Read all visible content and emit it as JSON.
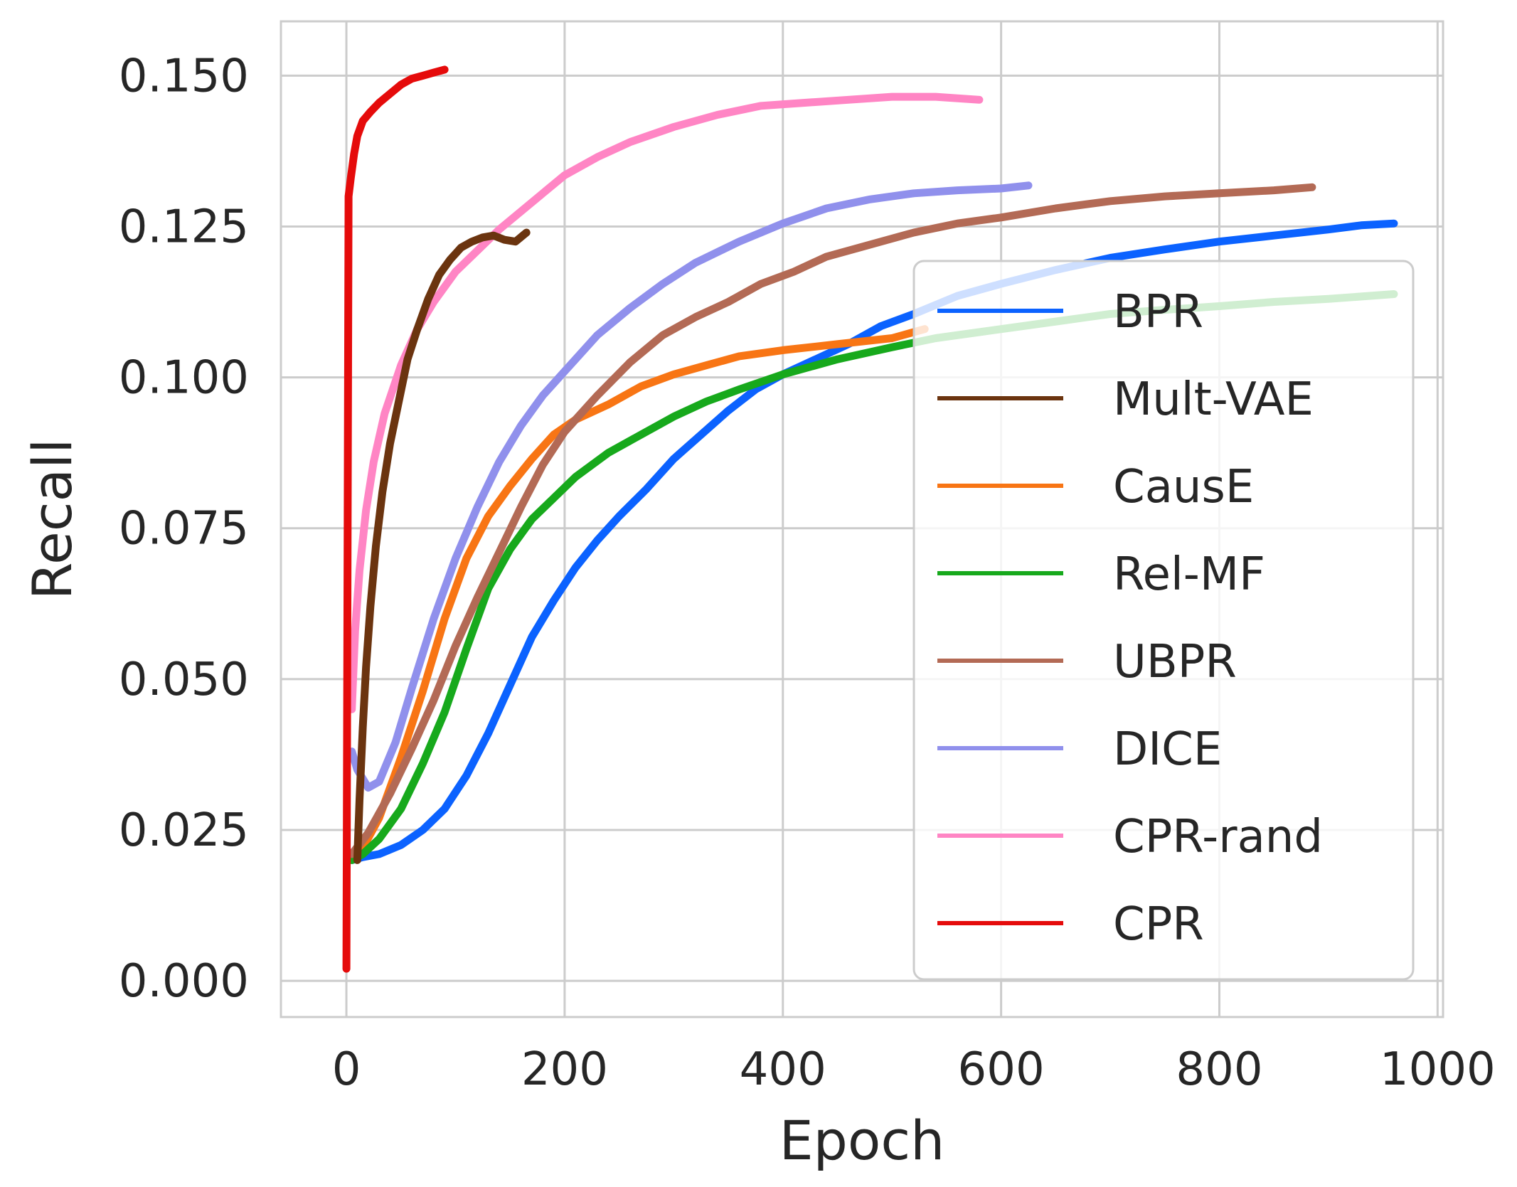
{
  "chart_data": {
    "type": "line",
    "xlabel": "Epoch",
    "ylabel": "Recall",
    "xlim": [
      -60,
      1005
    ],
    "ylim": [
      -0.006,
      0.159
    ],
    "xticks": [
      0,
      200,
      400,
      600,
      800,
      1000
    ],
    "xtick_labels": [
      "0",
      "200",
      "400",
      "600",
      "800",
      "1000"
    ],
    "yticks": [
      0.0,
      0.025,
      0.05,
      0.075,
      0.1,
      0.125,
      0.15
    ],
    "ytick_labels": [
      "0.000",
      "0.025",
      "0.050",
      "0.075",
      "0.100",
      "0.125",
      "0.150"
    ],
    "grid": true,
    "legend_position": "lower-right",
    "series": [
      {
        "name": "BPR",
        "color": "#0b62ff",
        "x": [
          5,
          15,
          30,
          50,
          70,
          90,
          110,
          130,
          150,
          170,
          190,
          210,
          230,
          250,
          275,
          300,
          325,
          350,
          375,
          400,
          430,
          460,
          490,
          520,
          560,
          600,
          650,
          700,
          750,
          800,
          850,
          900,
          930,
          960
        ],
        "y": [
          0.02,
          0.0205,
          0.021,
          0.0225,
          0.025,
          0.0285,
          0.034,
          0.041,
          0.049,
          0.057,
          0.063,
          0.0685,
          0.073,
          0.077,
          0.0815,
          0.0865,
          0.0905,
          0.0945,
          0.098,
          0.1005,
          0.103,
          0.1055,
          0.1085,
          0.1105,
          0.1135,
          0.1155,
          0.1178,
          0.1198,
          0.1212,
          0.1225,
          0.1235,
          0.1245,
          0.1252,
          0.1255
        ]
      },
      {
        "name": "CausE",
        "color": "#f87514",
        "x": [
          5,
          15,
          30,
          50,
          70,
          90,
          110,
          130,
          150,
          170,
          190,
          210,
          240,
          270,
          300,
          330,
          360,
          400,
          450,
          500,
          530
        ],
        "y": [
          0.02,
          0.022,
          0.027,
          0.037,
          0.048,
          0.06,
          0.07,
          0.077,
          0.082,
          0.0865,
          0.0905,
          0.093,
          0.0955,
          0.0985,
          0.1005,
          0.102,
          0.1035,
          0.1045,
          0.1055,
          0.1065,
          0.108
        ]
      },
      {
        "name": "Rel-MF",
        "color": "#17a91c",
        "x": [
          5,
          15,
          30,
          50,
          70,
          90,
          110,
          130,
          150,
          170,
          190,
          210,
          240,
          270,
          300,
          330,
          360,
          400,
          450,
          500,
          540,
          580,
          620,
          660,
          700,
          750,
          800,
          850,
          900,
          960
        ],
        "y": [
          0.02,
          0.021,
          0.0235,
          0.0285,
          0.036,
          0.0445,
          0.055,
          0.065,
          0.0715,
          0.0765,
          0.08,
          0.0835,
          0.0875,
          0.0905,
          0.0935,
          0.096,
          0.098,
          0.1005,
          0.103,
          0.105,
          0.1065,
          0.1075,
          0.1085,
          0.1095,
          0.1105,
          0.1112,
          0.1118,
          0.1125,
          0.113,
          0.1138
        ]
      },
      {
        "name": "UBPR",
        "color": "#b36a55",
        "x": [
          5,
          20,
          40,
          60,
          80,
          100,
          120,
          140,
          160,
          180,
          200,
          230,
          260,
          290,
          320,
          350,
          380,
          410,
          440,
          480,
          520,
          560,
          600,
          650,
          700,
          750,
          800,
          850,
          885
        ],
        "y": [
          0.021,
          0.0245,
          0.031,
          0.0385,
          0.0465,
          0.0555,
          0.0635,
          0.071,
          0.0785,
          0.0855,
          0.091,
          0.097,
          0.1025,
          0.107,
          0.11,
          0.1125,
          0.1155,
          0.1175,
          0.12,
          0.122,
          0.124,
          0.1255,
          0.1265,
          0.128,
          0.1292,
          0.13,
          0.1305,
          0.131,
          0.1315
        ]
      },
      {
        "name": "DICE",
        "color": "#9090ec",
        "x": [
          5,
          10,
          20,
          30,
          45,
          60,
          80,
          100,
          120,
          140,
          160,
          180,
          200,
          230,
          260,
          290,
          320,
          360,
          400,
          440,
          480,
          520,
          560,
          600,
          625
        ],
        "y": [
          0.038,
          0.035,
          0.032,
          0.033,
          0.0395,
          0.0485,
          0.06,
          0.07,
          0.0785,
          0.086,
          0.092,
          0.097,
          0.101,
          0.107,
          0.1115,
          0.1155,
          0.119,
          0.1225,
          0.1255,
          0.128,
          0.1295,
          0.1305,
          0.131,
          0.1313,
          0.1318
        ]
      },
      {
        "name": "CPR-rand",
        "color": "#ff85c4",
        "x": [
          5,
          8,
          12,
          18,
          25,
          35,
          50,
          65,
          80,
          100,
          120,
          140,
          160,
          180,
          200,
          230,
          260,
          300,
          340,
          380,
          420,
          460,
          500,
          540,
          580
        ],
        "y": [
          0.045,
          0.058,
          0.068,
          0.078,
          0.086,
          0.094,
          0.102,
          0.108,
          0.1125,
          0.1175,
          0.121,
          0.1245,
          0.1275,
          0.1305,
          0.1335,
          0.1365,
          0.139,
          0.1415,
          0.1435,
          0.145,
          0.1455,
          0.146,
          0.1465,
          0.1465,
          0.146
        ]
      },
      {
        "name": "Mult-VAE",
        "color": "#6b340f",
        "x": [
          10,
          12,
          15,
          18,
          22,
          27,
          33,
          40,
          48,
          56,
          65,
          75,
          85,
          95,
          105,
          115,
          125,
          135,
          145,
          155,
          165
        ],
        "y": [
          0.02,
          0.03,
          0.042,
          0.052,
          0.062,
          0.072,
          0.081,
          0.089,
          0.096,
          0.103,
          0.108,
          0.113,
          0.117,
          0.1195,
          0.1215,
          0.1225,
          0.1232,
          0.1235,
          0.1228,
          0.1225,
          0.124
        ]
      },
      {
        "name": "CPR",
        "color": "#e50b0b",
        "x": [
          0,
          2,
          4,
          7,
          10,
          15,
          22,
          30,
          40,
          50,
          60,
          70,
          80,
          90
        ],
        "y": [
          0.002,
          0.13,
          0.133,
          0.137,
          0.14,
          0.1425,
          0.144,
          0.1455,
          0.147,
          0.1485,
          0.1495,
          0.15,
          0.1505,
          0.151
        ]
      }
    ],
    "legend_order": [
      "BPR",
      "Mult-VAE",
      "CausE",
      "Rel-MF",
      "UBPR",
      "DICE",
      "CPR-rand",
      "CPR"
    ]
  }
}
